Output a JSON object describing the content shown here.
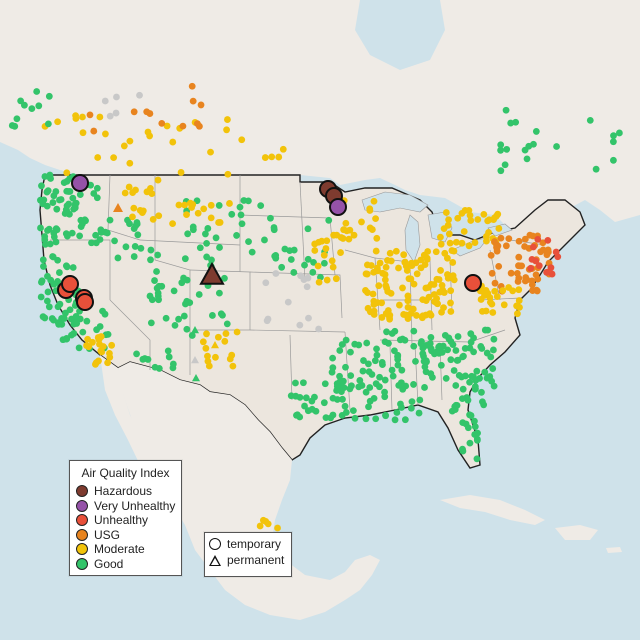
{
  "legend": {
    "title": "Air Quality Index",
    "items": [
      {
        "label": "Hazardous",
        "color": "#7e3b2f"
      },
      {
        "label": "Very Unhealthy",
        "color": "#9552a8"
      },
      {
        "label": "Unhealthy",
        "color": "#e8503a"
      },
      {
        "label": "USG",
        "color": "#e8841f"
      },
      {
        "label": "Moderate",
        "color": "#f2c30a"
      },
      {
        "label": "Good",
        "color": "#33c46a"
      }
    ]
  },
  "shape_legend": {
    "temporary": "temporary",
    "permanent": "permanent"
  },
  "colors": {
    "land": "#efebe6",
    "water": "#cfe2ea",
    "no_data": "#c8c8c8"
  }
}
